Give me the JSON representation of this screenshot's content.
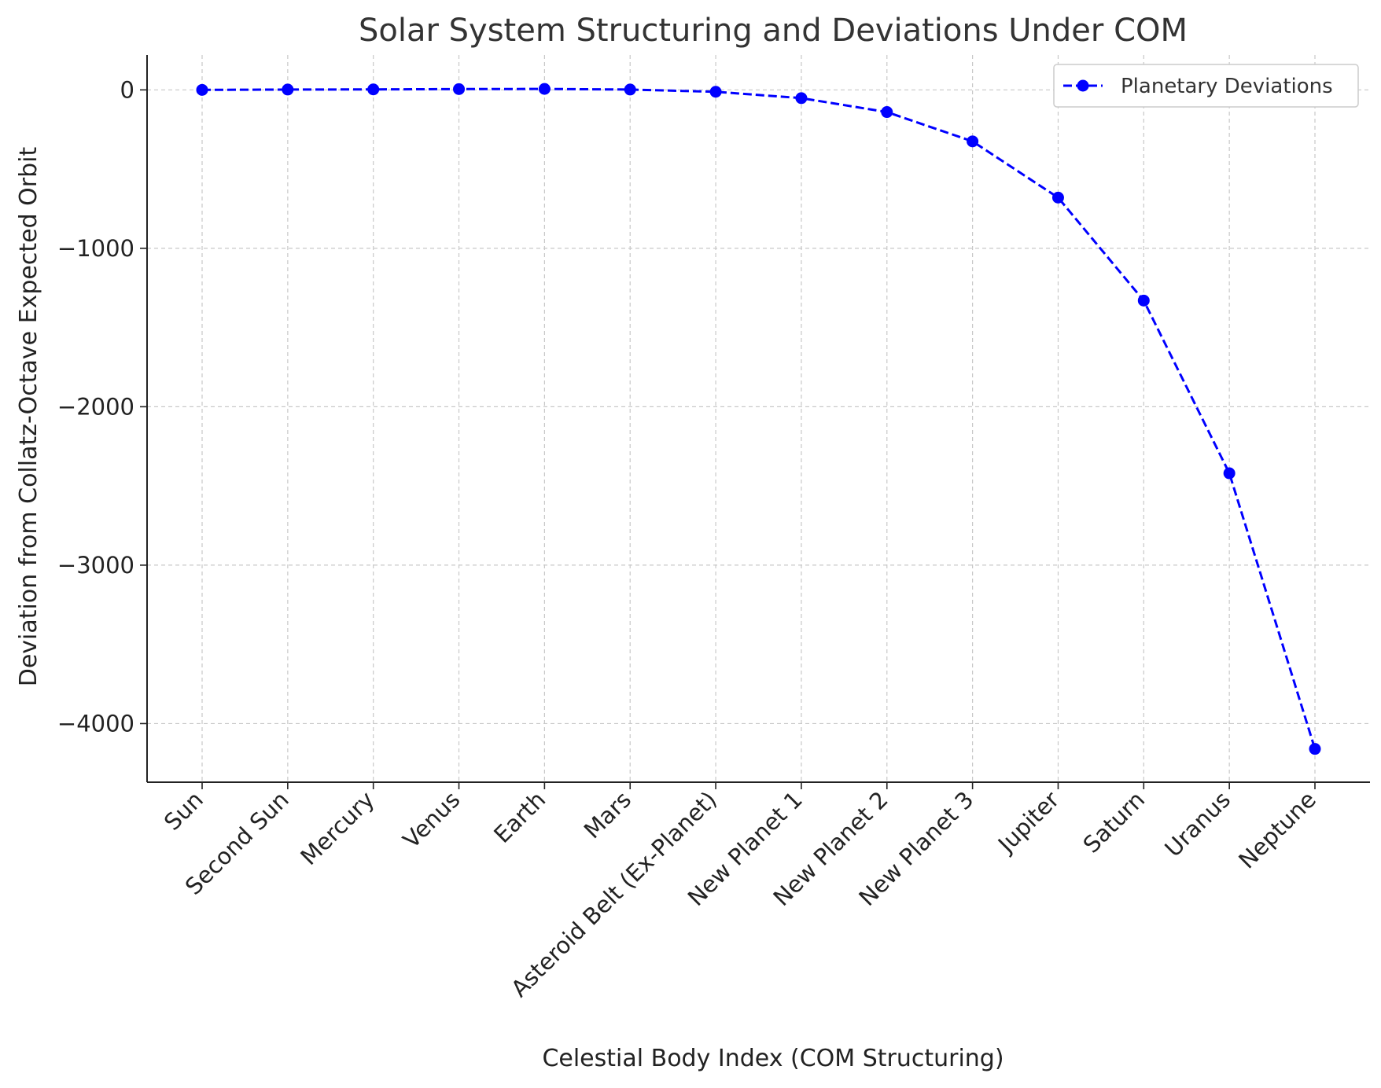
{
  "chart_data": {
    "type": "line",
    "title": "Solar System Structuring and Deviations Under COM",
    "xlabel": "Celestial Body Index (COM Structuring)",
    "ylabel": "Deviation from Collatz-Octave Expected Orbit",
    "categories": [
      "Sun",
      "Second Sun",
      "Mercury",
      "Venus",
      "Earth",
      "Mars",
      "Asteroid Belt (Ex-Planet)",
      "New Planet 1",
      "New Planet 2",
      "New Planet 3",
      "Jupiter",
      "Saturn",
      "Uranus",
      "Neptune"
    ],
    "series": [
      {
        "name": "Planetary Deviations",
        "color": "#0000ff",
        "line_style": "dashed",
        "marker": "circle",
        "values": [
          0,
          2,
          3,
          5,
          6,
          2,
          -12,
          -52,
          -140,
          -325,
          -680,
          -1330,
          -2420,
          -4160
        ]
      }
    ],
    "ylim": [
      -4370,
      220
    ],
    "yticks": [
      0,
      -1000,
      -2000,
      -3000,
      -4000
    ],
    "ytick_labels": [
      "0",
      "−1000",
      "−2000",
      "−3000",
      "−4000"
    ],
    "grid": true,
    "grid_style": "dashed",
    "legend_position": "upper right"
  }
}
